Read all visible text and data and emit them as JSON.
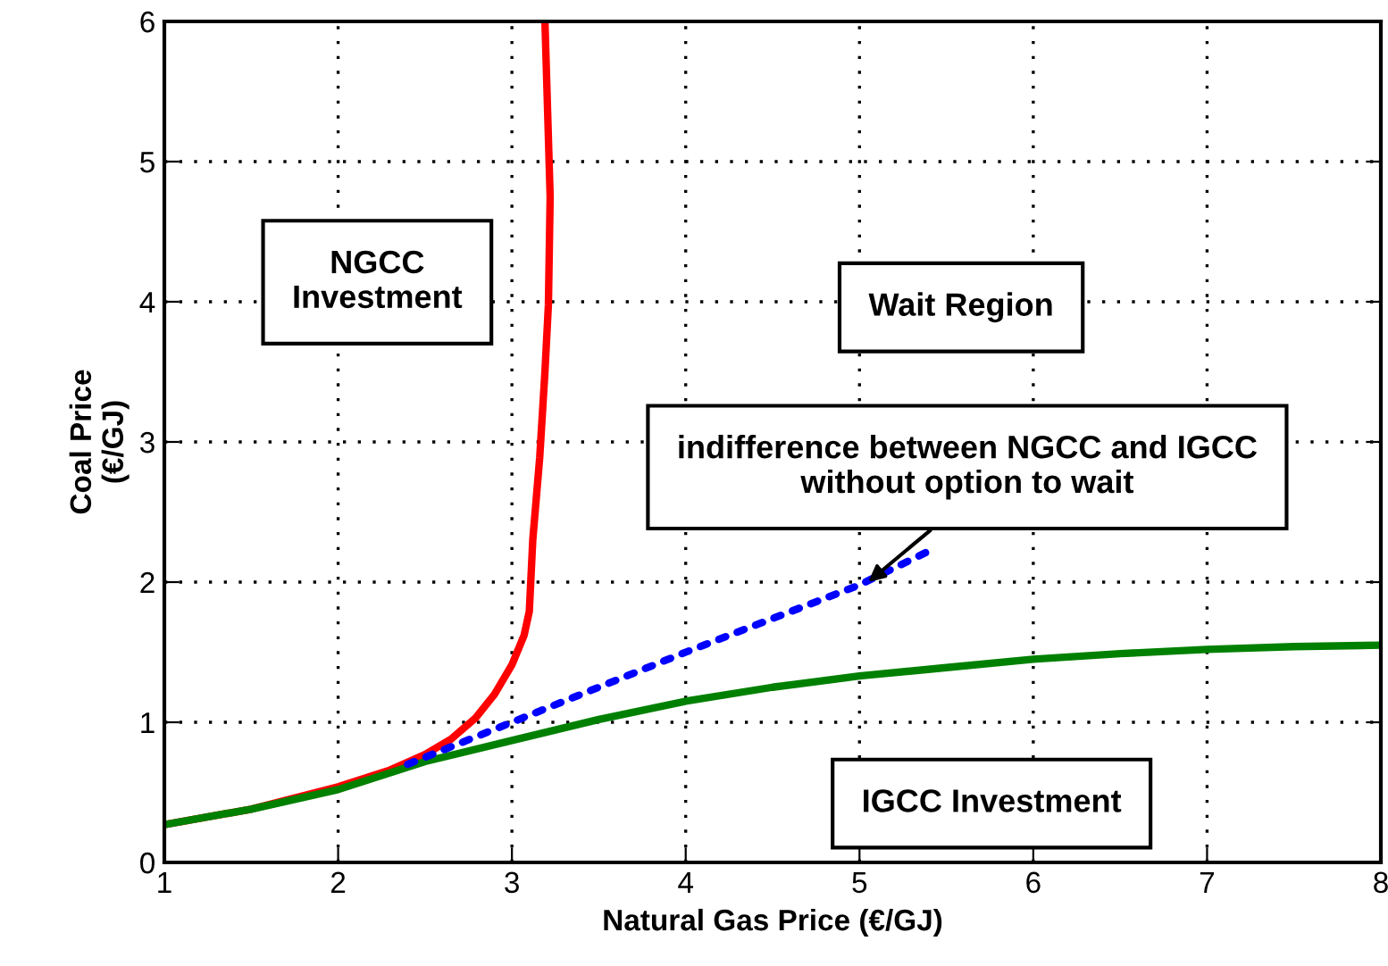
{
  "chart_data": {
    "type": "line",
    "xlabel": "Natural Gas Price (€/GJ)",
    "ylabel": "Coal Price\n(€/GJ)",
    "xlim": [
      1,
      8
    ],
    "ylim": [
      0,
      6
    ],
    "xticks": [
      1,
      2,
      3,
      4,
      5,
      6,
      7,
      8
    ],
    "yticks": [
      0,
      1,
      2,
      3,
      4,
      5,
      6
    ],
    "grid": true,
    "series": [
      {
        "color": "#ff0000",
        "x": [
          1,
          1.5,
          2,
          2.3,
          2.5,
          2.65,
          2.79,
          2.9,
          3.0,
          3.07,
          3.1,
          3.12,
          3.16,
          3.19,
          3.21,
          3.22,
          3.19
        ],
        "values": [
          0.27,
          0.38,
          0.54,
          0.66,
          0.77,
          0.88,
          1.03,
          1.2,
          1.41,
          1.62,
          1.79,
          2.3,
          2.89,
          3.5,
          3.98,
          4.75,
          6
        ]
      },
      {
        "color": "#008000",
        "x": [
          1,
          1.5,
          2,
          2.5,
          3,
          3.5,
          4,
          4.5,
          5,
          5.5,
          6,
          6.5,
          7,
          7.5,
          8
        ],
        "values": [
          0.27,
          0.38,
          0.52,
          0.72,
          0.87,
          1.02,
          1.15,
          1.25,
          1.33,
          1.39,
          1.45,
          1.49,
          1.52,
          1.54,
          1.55
        ]
      },
      {
        "color": "#0000ff",
        "line_style": "dotted",
        "x": [
          2.4,
          3,
          4,
          5,
          5.43
        ],
        "values": [
          0.7,
          1.0,
          1.5,
          1.98,
          2.24
        ]
      }
    ],
    "annotations": [
      "NGCC\nInvestment",
      "Wait Region",
      {
        "text": "indifference between NGCC and IGCC\nwithout option to wait",
        "x": 5.05,
        "y": 2.0
      },
      "IGCC Investment"
    ]
  }
}
